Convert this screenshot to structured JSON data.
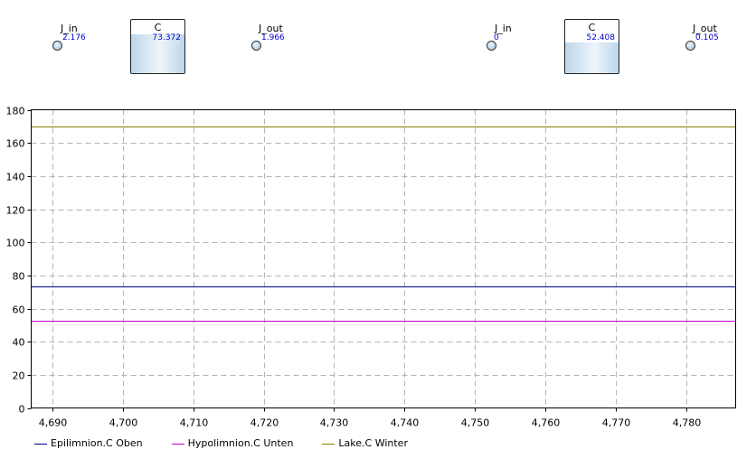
{
  "models": [
    {
      "inflow": {
        "label": "J_in",
        "value": "2.176"
      },
      "stock": {
        "label": "C",
        "value": "73.372",
        "level": 0.73
      },
      "outflow": {
        "label": "J_out",
        "value": "1.966"
      }
    },
    {
      "inflow": {
        "label": "J_in",
        "value": "0"
      },
      "stock": {
        "label": "C",
        "value": "52.408",
        "level": 0.57
      },
      "outflow": {
        "label": "J_out",
        "value": "0.105"
      }
    }
  ],
  "chart_data": {
    "type": "line",
    "xlim": [
      4687,
      4787
    ],
    "ylim": [
      0,
      180
    ],
    "xticks": [
      4690,
      4700,
      4710,
      4720,
      4730,
      4740,
      4750,
      4760,
      4770,
      4780
    ],
    "xtick_labels": [
      "4,690",
      "4,700",
      "4,710",
      "4,720",
      "4,730",
      "4,740",
      "4,750",
      "4,760",
      "4,770",
      "4,780"
    ],
    "yticks": [
      0,
      20,
      40,
      60,
      80,
      100,
      120,
      140,
      160,
      180
    ],
    "ytick_labels": [
      "0",
      "20",
      "40",
      "60",
      "80",
      "100",
      "120",
      "140",
      "160",
      "180"
    ],
    "grid": true,
    "legend_position": "bottom",
    "series": [
      {
        "name": "Epilimnion.C Oben",
        "color": "#00008b",
        "x": [
          4687,
          4787
        ],
        "values": [
          73.372,
          73.372
        ]
      },
      {
        "name": "Hypolimnion.C Unten",
        "color": "#cc00cc",
        "x": [
          4687,
          4787
        ],
        "values": [
          52.408,
          52.408
        ]
      },
      {
        "name": "Lake.C Winter",
        "color": "#808000",
        "x": [
          4687,
          4787
        ],
        "values": [
          170,
          170
        ]
      }
    ]
  }
}
